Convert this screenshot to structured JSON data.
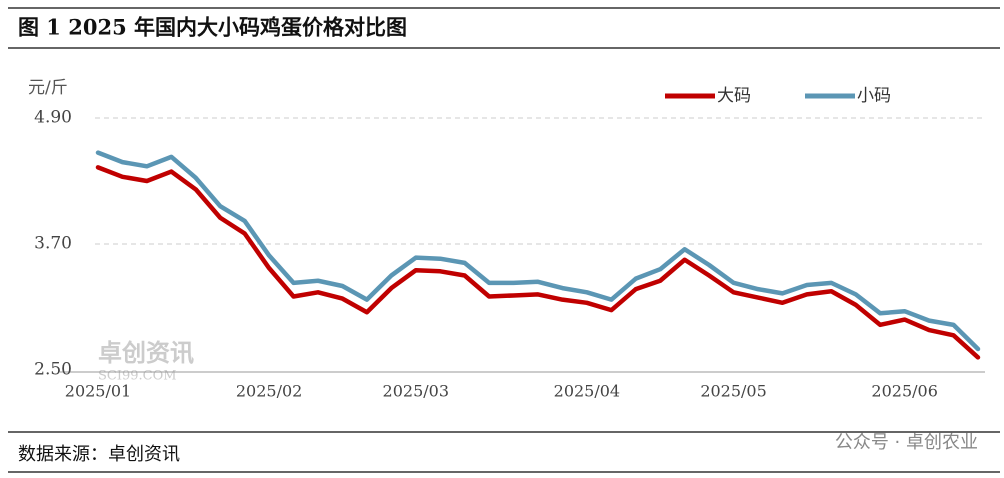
{
  "chart_data": {
    "type": "line",
    "title": "图 1 2025 年国内大小码鸡蛋价格对比图",
    "y_label": "元/斤",
    "source": "数据来源：卓创资讯",
    "watermark": "卓创资讯",
    "watermark_url": "SCI99.COM",
    "footer_watermark": "公众号 · 卓创农业",
    "categories": [
      "2025/01",
      null,
      null,
      null,
      null,
      null,
      null,
      "2025/02",
      null,
      null,
      null,
      null,
      null,
      "2025/03",
      null,
      null,
      null,
      null,
      null,
      null,
      "2025/04",
      null,
      null,
      null,
      null,
      null,
      "2025/05",
      null,
      null,
      null,
      null,
      null,
      null,
      "2025/06",
      null,
      null,
      null
    ],
    "series": [
      {
        "name": "大码",
        "color": "#c00000",
        "values": [
          4.43,
          4.34,
          4.3,
          4.39,
          4.22,
          3.95,
          3.8,
          3.47,
          3.2,
          3.24,
          3.18,
          3.05,
          3.28,
          3.45,
          3.44,
          3.4,
          3.2,
          3.21,
          3.22,
          3.17,
          3.14,
          3.07,
          3.27,
          3.35,
          3.55,
          3.4,
          3.24,
          3.19,
          3.14,
          3.22,
          3.25,
          3.12,
          2.93,
          2.98,
          2.88,
          2.83,
          2.62
        ]
      },
      {
        "name": "小码",
        "color": "#5b96b4",
        "values": [
          4.57,
          4.48,
          4.44,
          4.53,
          4.33,
          4.06,
          3.92,
          3.59,
          3.33,
          3.35,
          3.3,
          3.17,
          3.4,
          3.57,
          3.56,
          3.52,
          3.33,
          3.33,
          3.34,
          3.28,
          3.24,
          3.17,
          3.37,
          3.46,
          3.65,
          3.5,
          3.33,
          3.27,
          3.23,
          3.31,
          3.33,
          3.22,
          3.04,
          3.06,
          2.97,
          2.93,
          2.7
        ]
      }
    ],
    "ylim": [
      2.5,
      4.9
    ],
    "yticks": [
      {
        "value": 2.5,
        "label": "2.50"
      },
      {
        "value": 3.7,
        "label": "3.70"
      },
      {
        "value": 4.9,
        "label": "4.90"
      }
    ],
    "grid": true
  }
}
